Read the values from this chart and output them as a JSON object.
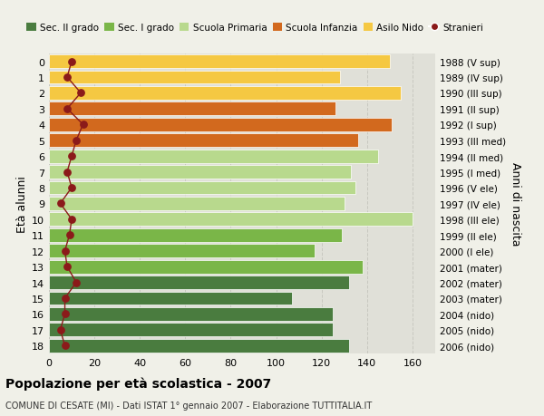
{
  "ages": [
    18,
    17,
    16,
    15,
    14,
    13,
    12,
    11,
    10,
    9,
    8,
    7,
    6,
    5,
    4,
    3,
    2,
    1,
    0
  ],
  "right_labels": [
    "1988 (V sup)",
    "1989 (IV sup)",
    "1990 (III sup)",
    "1991 (II sup)",
    "1992 (I sup)",
    "1993 (III med)",
    "1994 (II med)",
    "1995 (I med)",
    "1996 (V ele)",
    "1997 (IV ele)",
    "1998 (III ele)",
    "1999 (II ele)",
    "2000 (I ele)",
    "2001 (mater)",
    "2002 (mater)",
    "2003 (mater)",
    "2004 (nido)",
    "2005 (nido)",
    "2006 (nido)"
  ],
  "bar_values": [
    132,
    125,
    125,
    107,
    132,
    138,
    117,
    129,
    160,
    130,
    135,
    133,
    145,
    136,
    151,
    126,
    155,
    128,
    150
  ],
  "bar_colors": [
    "#4a7c3f",
    "#4a7c3f",
    "#4a7c3f",
    "#4a7c3f",
    "#4a7c3f",
    "#7ab648",
    "#7ab648",
    "#7ab648",
    "#b8d98d",
    "#b8d98d",
    "#b8d98d",
    "#b8d98d",
    "#b8d98d",
    "#d2691e",
    "#d2691e",
    "#d2691e",
    "#f5c842",
    "#f5c842",
    "#f5c842"
  ],
  "stranieri_values": [
    7,
    5,
    7,
    7,
    12,
    8,
    7,
    9,
    10,
    5,
    10,
    8,
    10,
    12,
    15,
    8,
    14,
    8,
    10
  ],
  "xlim": [
    0,
    170
  ],
  "xticks": [
    0,
    20,
    40,
    60,
    80,
    100,
    120,
    140,
    160
  ],
  "ylabel": "Età alunni",
  "right_ylabel": "Anni di nascita",
  "title": "Popolazione per età scolastica - 2007",
  "subtitle": "COMUNE DI CESATE (MI) - Dati ISTAT 1° gennaio 2007 - Elaborazione TUTTITALIA.IT",
  "legend_labels": [
    "Sec. II grado",
    "Sec. I grado",
    "Scuola Primaria",
    "Scuola Infanzia",
    "Asilo Nido",
    "Stranieri"
  ],
  "legend_colors": [
    "#4a7c3f",
    "#7ab648",
    "#b8d98d",
    "#d2691e",
    "#f5c842",
    "#8b1a1a"
  ],
  "bg_color": "#f0f0e8",
  "bar_bg_color": "#e0e0d8",
  "grid_color": "#c8c8c0"
}
